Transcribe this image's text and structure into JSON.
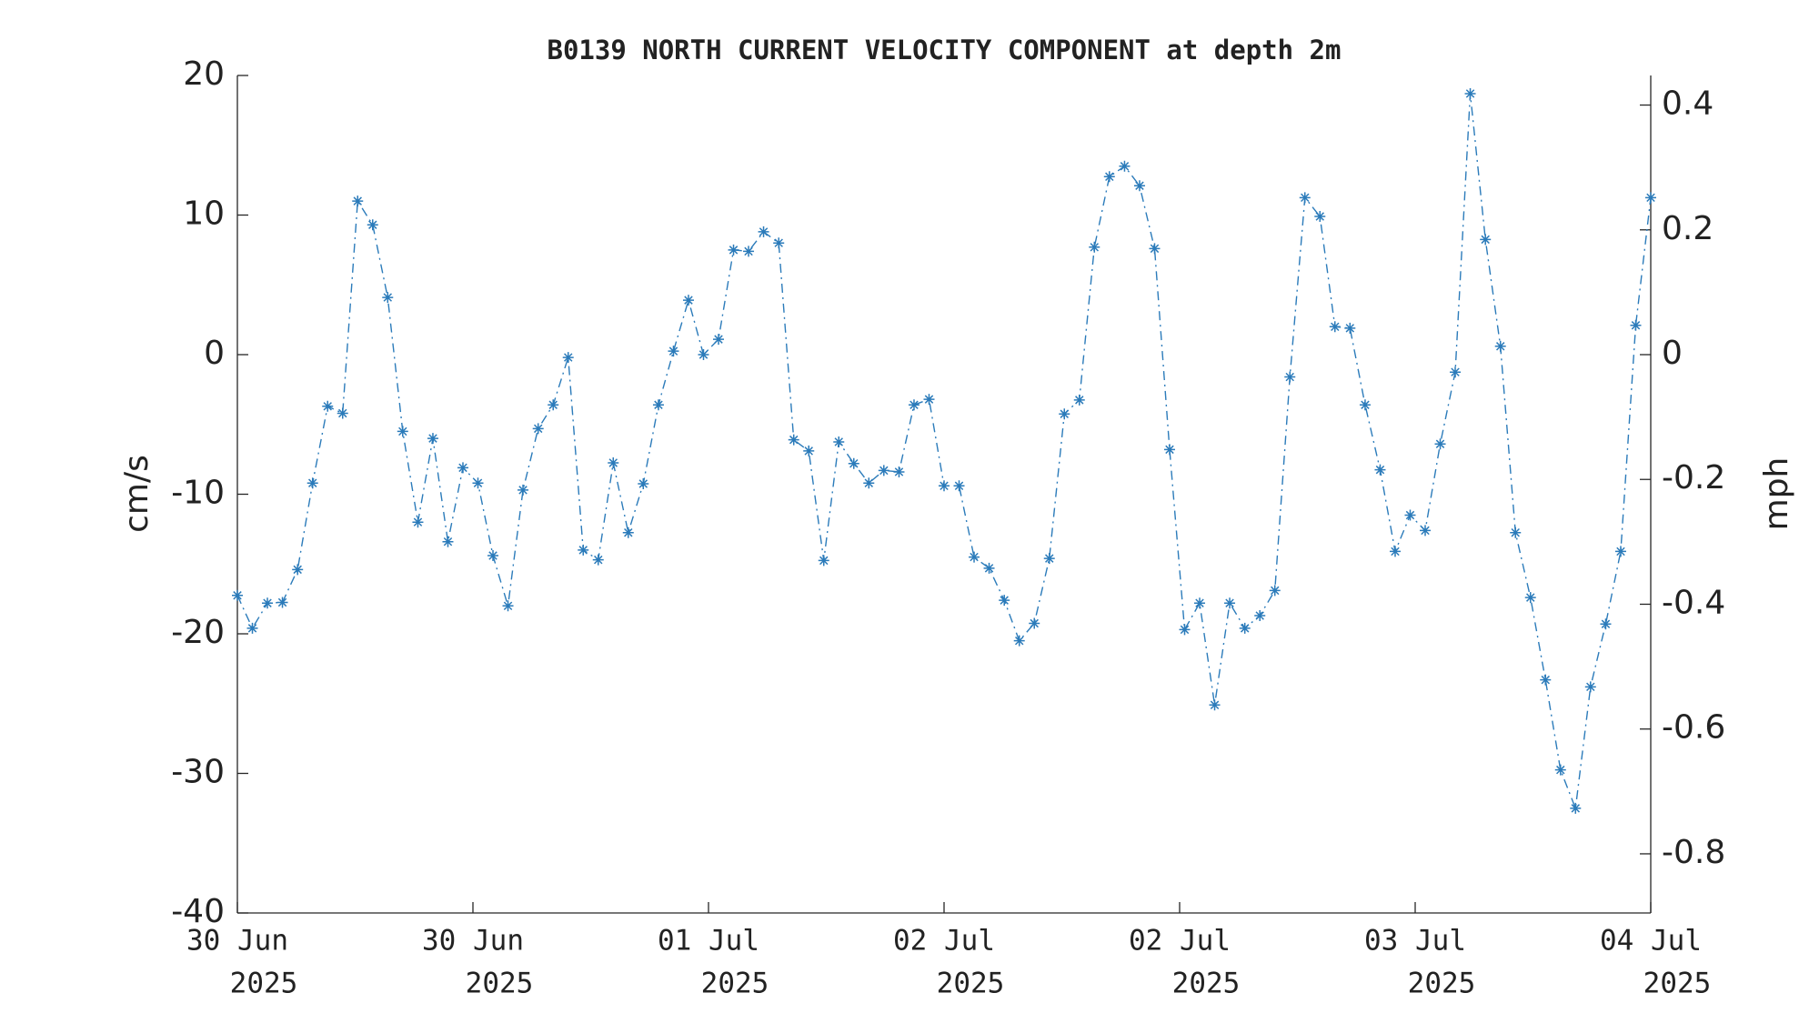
{
  "chart_data": {
    "type": "line",
    "title": "B0139 NORTH CURRENT VELOCITY COMPONENT at depth 2m",
    "y_label": "cm/s",
    "y2_label": "mph",
    "color": "#2b7bba",
    "marker": "*",
    "line_style": "dashdot",
    "x": [
      0,
      1.02,
      2.04,
      3.06,
      4.09,
      5.11,
      6.13,
      7.15,
      8.17,
      9.19,
      10.21,
      11.23,
      12.26,
      13.28,
      14.3,
      15.32,
      16.34,
      17.36,
      18.38,
      19.4,
      20.43,
      21.45,
      22.47,
      23.49,
      24.51,
      25.53,
      26.55,
      27.57,
      28.6,
      29.62,
      30.64,
      31.66,
      32.68,
      33.7,
      34.72,
      35.74,
      36.77,
      37.79,
      38.81,
      39.83,
      40.85,
      41.87,
      42.89,
      43.91,
      44.94,
      45.96,
      46.98,
      48.0,
      49.02,
      50.04,
      51.06,
      52.09,
      53.11,
      54.13,
      55.15,
      56.17,
      57.19,
      58.21,
      59.23,
      60.26,
      61.28,
      62.3,
      63.32,
      64.34,
      65.36,
      66.38,
      67.4,
      68.43,
      69.45,
      70.47,
      71.49,
      72.51,
      73.53,
      74.55,
      75.57,
      76.6,
      77.62,
      78.64,
      79.66,
      80.68,
      81.7,
      82.72,
      83.74,
      84.77,
      85.79,
      86.81,
      87.83,
      88.85,
      89.87,
      90.89,
      91.91,
      92.94,
      93.96,
      94.98,
      96.0
    ],
    "values": [
      -17.25,
      -19.6,
      -17.8,
      -17.75,
      -15.4,
      -9.2,
      -3.7,
      -4.2,
      11.0,
      9.3,
      4.1,
      -5.5,
      -12.0,
      -6.0,
      -13.4,
      -8.1,
      -9.2,
      -14.4,
      -18.0,
      -9.7,
      -5.3,
      -3.6,
      -0.2,
      -14.0,
      -14.7,
      -7.75,
      -12.75,
      -9.25,
      -3.6,
      0.25,
      3.9,
      0,
      1.1,
      7.5,
      7.4,
      8.8,
      8.0,
      -6.1,
      -6.9,
      -14.75,
      -6.25,
      -7.8,
      -9.2,
      -8.3,
      -8.4,
      -3.6,
      -3.2,
      -9.4,
      -9.4,
      -14.5,
      -15.3,
      -17.6,
      -20.5,
      -19.25,
      -14.6,
      -4.25,
      -3.25,
      7.7,
      12.75,
      13.5,
      12.1,
      7.6,
      -6.8,
      -19.7,
      -17.8,
      -25.1,
      -17.8,
      -19.6,
      -18.7,
      -16.9,
      -1.6,
      11.25,
      9.9,
      2.0,
      1.9,
      -3.6,
      -8.25,
      -14.1,
      -11.5,
      -12.6,
      -6.4,
      -1.25,
      18.7,
      8.25,
      0.6,
      -12.75,
      -17.4,
      -23.3,
      -29.75,
      -32.5,
      -23.8,
      -19.3,
      -14.1,
      2.1,
      11.25
    ],
    "xlim": [
      0,
      96
    ],
    "xticks": [
      {
        "value": 0,
        "label": "30 Jun",
        "year": "2025"
      },
      {
        "value": 16,
        "label": "30 Jun",
        "year": "2025"
      },
      {
        "value": 32,
        "label": "01 Jul",
        "year": "2025"
      },
      {
        "value": 48,
        "label": "02 Jul",
        "year": "2025"
      },
      {
        "value": 64,
        "label": "02 Jul",
        "year": "2025"
      },
      {
        "value": 80,
        "label": "03 Jul",
        "year": "2025"
      },
      {
        "value": 96,
        "label": "04 Jul",
        "year": "2025"
      }
    ],
    "ylim": [
      -40,
      20
    ],
    "yticks": [
      -40,
      -30,
      -20,
      -10,
      0,
      10,
      20
    ],
    "y2lim": [
      -0.8948,
      0.4474
    ],
    "y2ticks": [
      -0.8,
      -0.6,
      -0.4,
      -0.2,
      0,
      0.2,
      0.4
    ],
    "grid": false
  }
}
